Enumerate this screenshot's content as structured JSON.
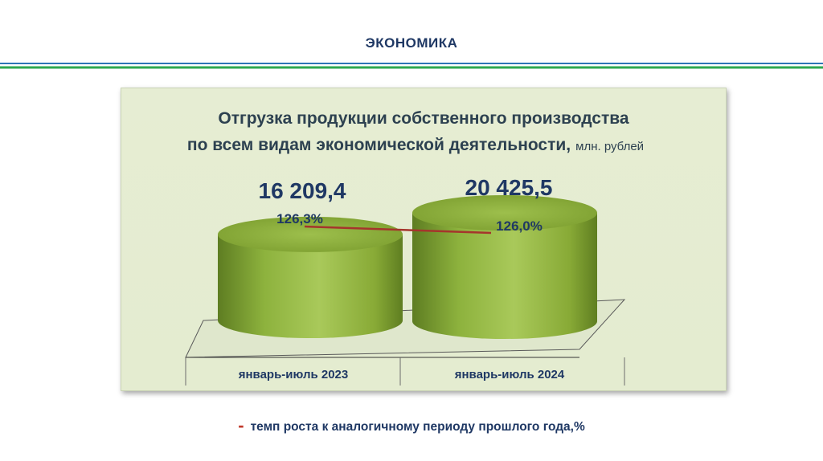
{
  "page": {
    "section_title": "ЭКОНОМИКА",
    "legend_dash": "-",
    "legend_text": "темп роста к аналогичному периоду прошлого года,%"
  },
  "colors": {
    "cylinder": "#88a93c",
    "growth_line": "#a5352c",
    "rule_blue": "#2e75b6",
    "rule_green": "#2fa84f"
  },
  "chart_data": {
    "type": "bar",
    "title_line1": "Отгрузка продукции собственного производства",
    "title_line2": "по всем видам экономической деятельности,",
    "title_unit": "млн. рублей",
    "categories": [
      "январь-июль 2023",
      "январь-июль 2024"
    ],
    "values": [
      16209.4,
      20425.5
    ],
    "value_labels": [
      "16 209,4",
      "20 425,5"
    ],
    "growth_series": {
      "values": [
        126.3,
        126.0
      ],
      "labels": [
        "126,3%",
        "126,0%"
      ]
    }
  }
}
